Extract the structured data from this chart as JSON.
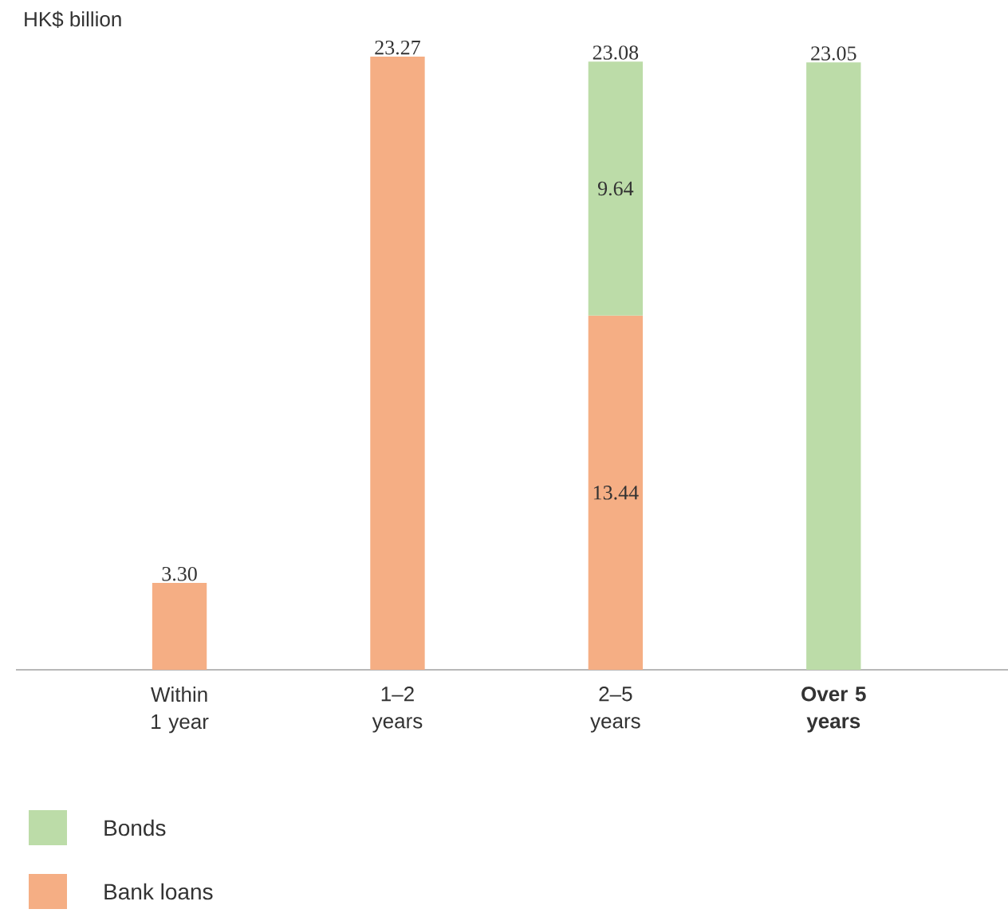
{
  "chart_data": {
    "type": "bar",
    "stacked": true,
    "ylabel": "HK$ billion",
    "categories": [
      "Within 1 year",
      "1–2 years",
      "2–5 years",
      "**Over 5 years**"
    ],
    "series": [
      {
        "name": "Bank loans",
        "color": "#f5ae84",
        "values": [
          3.3,
          23.27,
          13.44,
          null
        ],
        "value_labels": [
          "3.30",
          "23.27",
          "13.44",
          null
        ]
      },
      {
        "name": "Bonds",
        "color": "#bcdca8",
        "values": [
          null,
          null,
          9.64,
          23.05
        ],
        "value_labels": [
          null,
          null,
          "9.64",
          "23.05"
        ]
      }
    ],
    "totals": [
      null,
      null,
      "23.08",
      null
    ],
    "legend": "bottom"
  }
}
